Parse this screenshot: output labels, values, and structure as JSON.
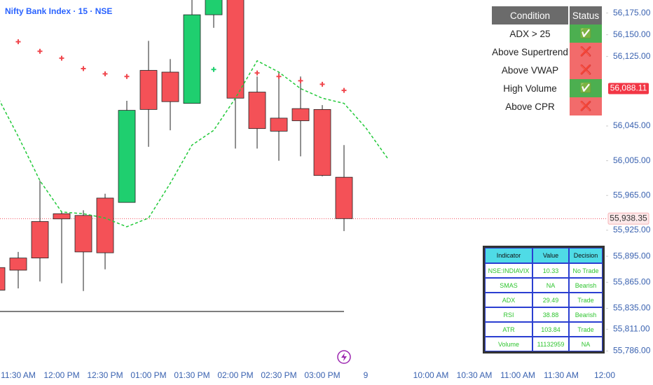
{
  "chart_data": {
    "type": "candlestick",
    "title": "Nifty Bank Index · 15 · NSE",
    "categories": [
      null,
      "11:30 AM",
      null,
      "12:00 PM",
      null,
      "12:30 PM",
      null,
      "01:00 PM",
      null,
      "01:30 PM",
      null,
      "02:00 PM",
      null,
      "02:30 PM",
      null,
      "03:00 PM",
      null,
      "9",
      null,
      null,
      "10:00 AM",
      null,
      "10:30 AM",
      null,
      "11:00 AM",
      null,
      "11:30 AM",
      null,
      "12:00"
    ],
    "open": [
      55882,
      55893,
      55935,
      55944,
      55942,
      55962,
      55957,
      56109,
      56107,
      56071,
      56173,
      56205,
      56084,
      56054,
      56065,
      56064,
      55986,
      null,
      null,
      null,
      null,
      null,
      null,
      null,
      null,
      null,
      null,
      null,
      null
    ],
    "high": [
      55884,
      55900,
      55982,
      55946,
      55948,
      55967,
      56074,
      56143,
      56122,
      56198,
      56210,
      56215,
      56102,
      56107,
      56102,
      56069,
      56023,
      null,
      null,
      null,
      null,
      null,
      null,
      null,
      null,
      null,
      null,
      null,
      null
    ],
    "low": [
      55855,
      55858,
      55866,
      55864,
      55855,
      55880,
      55957,
      56021,
      56040,
      56071,
      56158,
      56019,
      56019,
      56005,
      56010,
      55987,
      55924,
      null,
      null,
      null,
      null,
      null,
      null,
      null,
      null,
      null,
      null,
      null,
      null
    ],
    "close": [
      55856,
      55879,
      55893,
      55938,
      55900,
      55899,
      56063,
      56064,
      56073,
      56173,
      56200,
      56077,
      56042,
      56039,
      56051,
      55988,
      55938.35,
      null,
      null,
      null,
      null,
      null,
      null,
      null,
      null,
      null,
      null,
      null,
      null
    ],
    "up_color": "#1fcf6f",
    "down_color": "#f45157",
    "lines": [
      {
        "color": "#22c93a",
        "style": "dashed",
        "values": [
          56081,
          56033,
          55982,
          55946,
          55944,
          55939,
          55929,
          55939,
          55979,
          56023,
          56040,
          56077,
          56120,
          56107,
          56088,
          56077,
          56071,
          56043,
          56008,
          null,
          null,
          null,
          null,
          null,
          null,
          null,
          null,
          null,
          null
        ]
      }
    ],
    "markers": [
      {
        "color": "#f0474d",
        "values": [
          null,
          56142,
          56131,
          56123,
          56111,
          56105,
          56102,
          null,
          null,
          null,
          null,
          null,
          56106,
          56102,
          56097,
          56093,
          56086,
          null,
          null,
          null,
          null,
          null,
          null,
          null,
          null,
          null,
          null,
          null,
          null
        ]
      },
      {
        "color": "#1fcf6f",
        "values": [
          null,
          null,
          null,
          null,
          null,
          null,
          null,
          null,
          null,
          null,
          56110,
          null,
          null,
          null,
          null,
          null,
          null,
          null,
          null,
          null,
          null,
          null,
          null,
          null,
          null,
          null,
          null,
          null,
          null
        ]
      }
    ],
    "hlines": [
      {
        "value": 55831.5,
        "color": "#444444"
      }
    ],
    "price_labels": [
      {
        "value": 56088.11,
        "label": "56,088.11",
        "color": "#f23645",
        "filled": true
      },
      {
        "value": 55938.35,
        "label": "55,938.35",
        "color": "#f23645",
        "filled": false
      }
    ],
    "ylim": [
      55771,
      56190
    ],
    "yticks": [
      {
        "value": 56175,
        "label": "56,175.00"
      },
      {
        "value": 56150,
        "label": "56,150.00"
      },
      {
        "value": 56125,
        "label": "56,125.00"
      },
      {
        "value": 56045,
        "label": "56,045.00"
      },
      {
        "value": 56005,
        "label": "56,005.00"
      },
      {
        "value": 55965,
        "label": "55,965.00"
      },
      {
        "value": 55925,
        "label": "55,925.00"
      },
      {
        "value": 55895,
        "label": "55,895.00"
      },
      {
        "value": 55865,
        "label": "55,865.00"
      },
      {
        "value": 55835,
        "label": "55,835.00"
      },
      {
        "value": 55811,
        "label": "55,811.00"
      },
      {
        "value": 55786,
        "label": "55,786.00"
      }
    ],
    "grid": false
  },
  "condition_table": {
    "header": [
      "Condition",
      "Status"
    ],
    "rows": [
      [
        "ADX > 25",
        "✅"
      ],
      [
        "Above Supertrend",
        "❌"
      ],
      [
        "Above VWAP",
        "❌"
      ],
      [
        "High Volume",
        "✅"
      ],
      [
        "Above CPR",
        "❌"
      ]
    ]
  },
  "indicator_table": {
    "header": [
      "Indicator",
      "Value",
      "Decision"
    ],
    "rows": [
      [
        "NSE:INDIAVIX",
        "10.33",
        "No Trade"
      ],
      [
        "SMAS",
        "NA",
        "Bearish"
      ],
      [
        "ADX",
        "29.49",
        "Trade"
      ],
      [
        "RSI",
        "38.88",
        "Bearish"
      ],
      [
        "ATR",
        "103.84",
        "Trade"
      ],
      [
        "Volume",
        "11132959",
        "NA"
      ]
    ]
  }
}
